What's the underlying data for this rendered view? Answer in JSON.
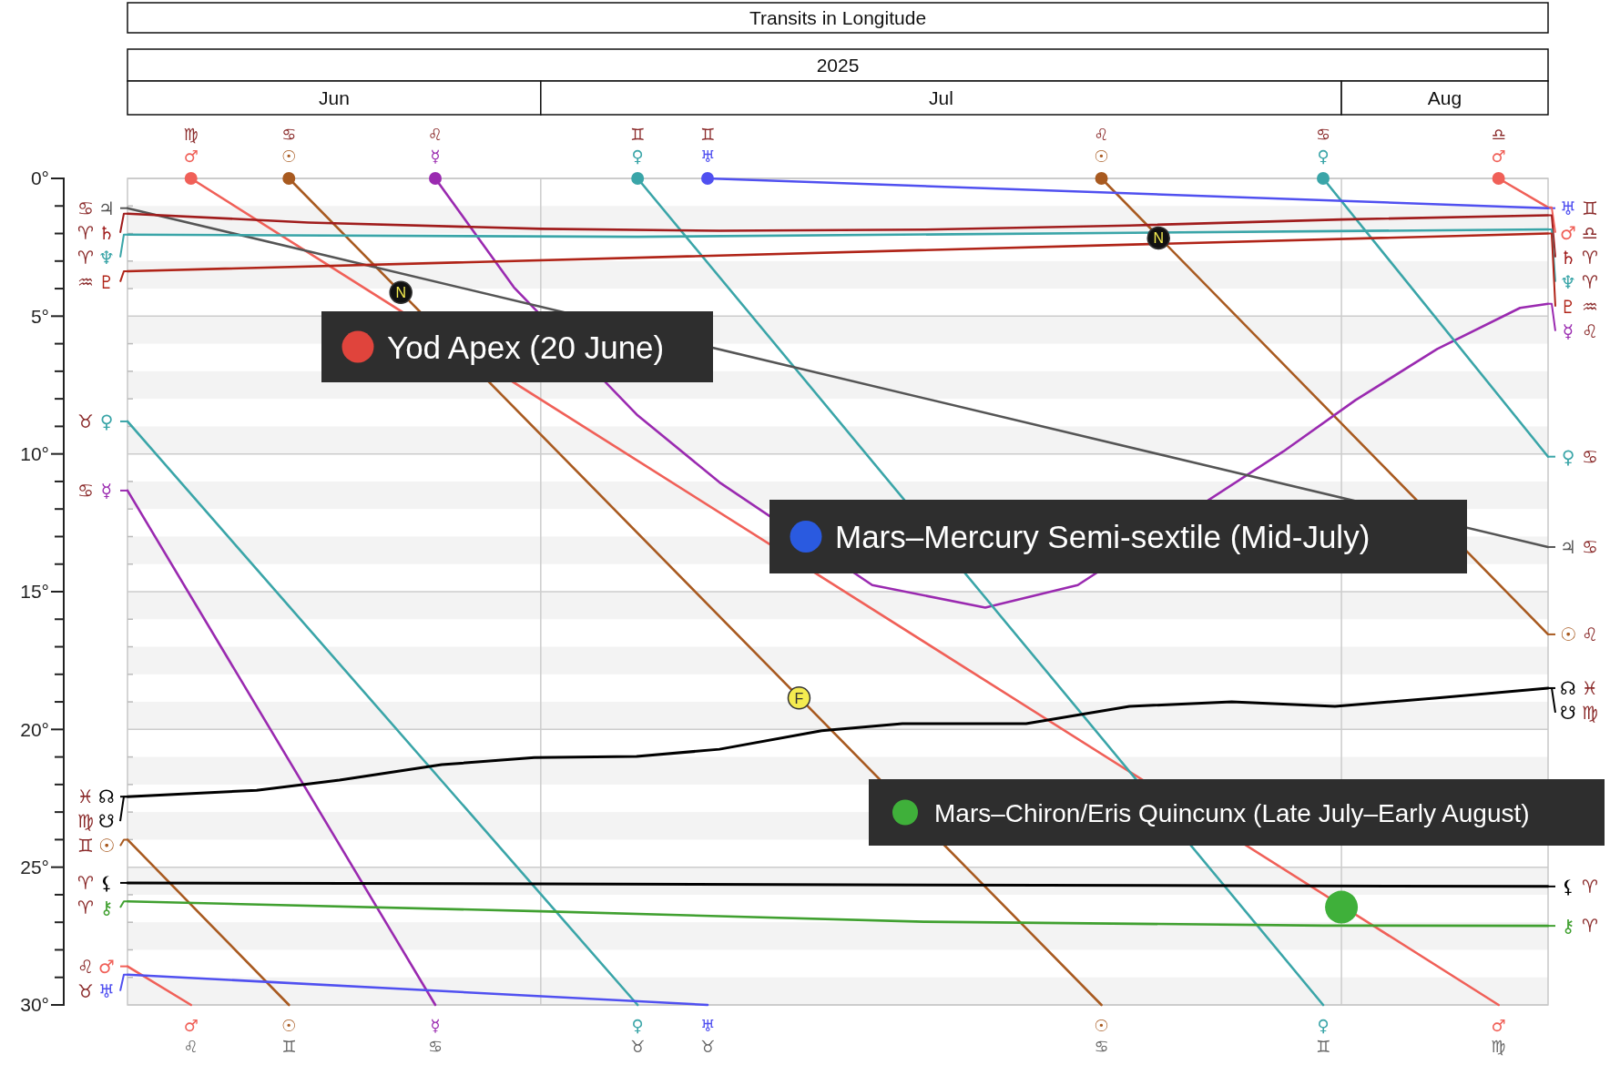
{
  "chart_data": {
    "type": "line",
    "title": "Transits in Longitude",
    "subtitle": "2025",
    "grid": "y",
    "xlim": [
      "2025-06-15",
      "2025-08-09"
    ],
    "xticks": [
      {
        "value": "2025-06-23",
        "label": "Jun"
      },
      {
        "value": "2025-07-16T12:00",
        "label": "Jul"
      },
      {
        "value": "2025-08-05",
        "label": "Aug"
      }
    ],
    "ref_lines": [
      {
        "axis": "x",
        "value": "2025-07-01",
        "label": null,
        "color": "#cccccc"
      },
      {
        "axis": "x",
        "value": "2025-08-01",
        "label": null,
        "color": "#cccccc"
      }
    ],
    "ylim": [
      30,
      0
    ],
    "yticks": [
      {
        "value": 0,
        "label": "0°"
      },
      {
        "value": 1,
        "label": null
      },
      {
        "value": 2,
        "label": null
      },
      {
        "value": 3,
        "label": null
      },
      {
        "value": 4,
        "label": null
      },
      {
        "value": 5,
        "label": "5°"
      },
      {
        "value": 6,
        "label": null
      },
      {
        "value": 7,
        "label": null
      },
      {
        "value": 8,
        "label": null
      },
      {
        "value": 9,
        "label": null
      },
      {
        "value": 10,
        "label": "10°"
      },
      {
        "value": 11,
        "label": null
      },
      {
        "value": 12,
        "label": null
      },
      {
        "value": 13,
        "label": null
      },
      {
        "value": 14,
        "label": null
      },
      {
        "value": 15,
        "label": "15°"
      },
      {
        "value": 16,
        "label": null
      },
      {
        "value": 17,
        "label": null
      },
      {
        "value": 18,
        "label": null
      },
      {
        "value": 19,
        "label": null
      },
      {
        "value": 20,
        "label": "20°"
      },
      {
        "value": 21,
        "label": null
      },
      {
        "value": 22,
        "label": null
      },
      {
        "value": 23,
        "label": null
      },
      {
        "value": 24,
        "label": null
      },
      {
        "value": 25,
        "label": "25°"
      },
      {
        "value": 26,
        "label": null
      },
      {
        "value": 27,
        "label": null
      },
      {
        "value": 28,
        "label": null
      },
      {
        "value": 29,
        "label": null
      },
      {
        "value": 30,
        "label": "30°"
      }
    ],
    "series": [
      {
        "color": "#f06058",
        "x": [
          "2025-06-15",
          "2025-06-17T11:00"
        ],
        "values": [
          28.6,
          30
        ]
      },
      {
        "color": "#f06058",
        "x": [
          "2025-06-17T11:00",
          "2025-08-07T02:00"
        ],
        "values": [
          0,
          30
        ]
      },
      {
        "color": "#f06058",
        "x": [
          "2025-08-07T02:00",
          "2025-08-09"
        ],
        "values": [
          0,
          1.05
        ]
      },
      {
        "color": "#a85a20",
        "x": [
          "2025-06-15",
          "2025-06-21T06:00"
        ],
        "values": [
          24.0,
          30
        ]
      },
      {
        "color": "#a85a20",
        "x": [
          "2025-06-21T06:00",
          "2025-07-22T17:00"
        ],
        "values": [
          0,
          30
        ]
      },
      {
        "color": "#a85a20",
        "x": [
          "2025-07-22T17:00",
          "2025-08-09"
        ],
        "values": [
          0,
          16.55
        ]
      },
      {
        "color": "#9a2ab0",
        "x": [
          "2025-06-15",
          "2025-06-26T22:00"
        ],
        "values": [
          11.33,
          30
        ]
      },
      {
        "color": "#9a2ab0",
        "x": [
          "2025-06-26T22:00",
          "2025-06-29T23:00",
          "2025-07-04T18:00",
          "2025-07-07T22:00",
          "2025-07-13T20:00",
          "2025-07-18T05:00",
          "2025-07-21T19:00",
          "2025-07-29T18:00",
          "2025-08-01T13:00",
          "2025-08-04T17:00",
          "2025-08-07T22:00",
          "2025-08-09"
        ],
        "values": [
          0,
          3.95,
          8.6,
          11.03,
          14.76,
          15.58,
          14.76,
          9.91,
          8.05,
          6.19,
          4.7,
          4.55
        ]
      },
      {
        "color": "#3aa5a8",
        "x": [
          "2025-06-15",
          "2025-07-04T18:00"
        ],
        "values": [
          8.82,
          30
        ]
      },
      {
        "color": "#3aa5a8",
        "x": [
          "2025-07-04T18:00",
          "2025-07-31T07:00"
        ],
        "values": [
          0,
          30
        ]
      },
      {
        "color": "#3aa5a8",
        "x": [
          "2025-07-31T07:00",
          "2025-08-09"
        ],
        "values": [
          0,
          10.1
        ]
      },
      {
        "color": "#5050f0",
        "x": [
          "2025-06-15",
          "2025-07-07T11:00"
        ],
        "values": [
          28.9,
          30
        ]
      },
      {
        "color": "#5050f0",
        "x": [
          "2025-07-07T11:00",
          "2025-08-09"
        ],
        "values": [
          0,
          1.08
        ]
      },
      {
        "color": "#555555",
        "x": [
          "2025-06-15",
          "2025-08-09"
        ],
        "values": [
          1.08,
          13.38
        ]
      },
      {
        "color": "#a01c1c",
        "x": [
          "2025-06-15",
          "2025-06-22",
          "2025-07-01",
          "2025-07-07T22:00",
          "2025-07-15T20:00",
          "2025-07-23T19:00",
          "2025-08-01",
          "2025-08-09"
        ],
        "values": [
          1.28,
          1.6,
          1.83,
          1.9,
          1.86,
          1.71,
          1.49,
          1.34
        ]
      },
      {
        "color": "#3aa5a8",
        "x": [
          "2025-06-15",
          "2025-07-04T18:00",
          "2025-08-09"
        ],
        "values": [
          2.04,
          2.12,
          1.85
        ]
      },
      {
        "color": "#b02418",
        "x": [
          "2025-06-15",
          "2025-08-09"
        ],
        "values": [
          3.37,
          2.0
        ]
      },
      {
        "color": "#000000",
        "x": [
          "2025-06-15",
          "2025-06-20",
          "2025-06-23T05:00",
          "2025-06-27T04:00",
          "2025-06-30T18:00",
          "2025-07-04T17:00",
          "2025-07-07T22:00",
          "2025-07-11T21:00",
          "2025-07-15",
          "2025-07-19T19:00",
          "2025-07-23T19:00",
          "2025-07-27T18:00",
          "2025-07-31T18:00",
          "2025-08-04T17:00",
          "2025-08-09"
        ],
        "values": [
          22.44,
          22.21,
          21.84,
          21.28,
          21.02,
          20.98,
          20.72,
          20.05,
          19.79,
          19.79,
          19.16,
          19.0,
          19.16,
          18.86,
          18.5
        ]
      },
      {
        "color": "#000000",
        "x": [
          "2025-06-15",
          "2025-08-09"
        ],
        "values": [
          25.57,
          25.7
        ]
      },
      {
        "color": "#40a030",
        "x": [
          "2025-06-15",
          "2025-07-01",
          "2025-07-15T20:00",
          "2025-07-31T07:00",
          "2025-08-09"
        ],
        "values": [
          26.24,
          26.6,
          26.98,
          27.12,
          27.13
        ]
      },
      {
        "type": "scatter",
        "colors": [
          "#f06058",
          "#a85a20",
          "#9a2ab0",
          "#3aa5a8",
          "#5050f0",
          "#a85a20",
          "#3aa5a8",
          "#f06058"
        ],
        "x": [
          "2025-06-17T11:00",
          "2025-06-21T06:00",
          "2025-06-26T22:00",
          "2025-07-04T18:00",
          "2025-07-07T11:00",
          "2025-07-22T17:00",
          "2025-07-31T07:00",
          "2025-08-07T02:00"
        ],
        "values": [
          0,
          0,
          0,
          0,
          0,
          0,
          0,
          0
        ]
      },
      {
        "type": "bubble",
        "color": "#3fb03a",
        "x": [
          "2025-08-01"
        ],
        "values": [
          26.45
        ],
        "sizes": [
          1
        ]
      }
    ],
    "annotations": [
      "Yod Apex (20 June)",
      "Mars–Mercury Semi-sextile (Mid-July)",
      "Mars–Chiron/Eris Quincunx (Late July–Early August)",
      {
        "text": "N",
        "x": "2025-06-25T14:00",
        "y": 4.14
      },
      {
        "text": "N",
        "x": "2025-07-24T22:00",
        "y": 2.16
      },
      {
        "text": "F",
        "x": "2025-07-11",
        "y": 18.86
      },
      {
        "text": "♋ ♃",
        "x": "2025-06-15",
        "y": 1.08
      },
      {
        "text": "♈ ♄",
        "x": "2025-06-15",
        "y": 1.28
      },
      {
        "text": "♈ ♆",
        "x": "2025-06-15",
        "y": 2.04
      },
      {
        "text": "♒ ♇",
        "x": "2025-06-15",
        "y": 3.37
      },
      {
        "text": "♉ ♀",
        "x": "2025-06-15",
        "y": 8.82
      },
      {
        "text": "♋ ☿",
        "x": "2025-06-15",
        "y": 11.33
      },
      {
        "text": "♓ ☊",
        "x": "2025-06-15",
        "y": 22.44
      },
      {
        "text": "♍ ☋",
        "x": "2025-06-15",
        "y": 22.44
      },
      {
        "text": "♊ ☉",
        "x": "2025-06-15",
        "y": 24.0
      },
      {
        "text": "♈ ⚸",
        "x": "2025-06-15",
        "y": 25.57
      },
      {
        "text": "♈ ⚷",
        "x": "2025-06-15",
        "y": 26.24
      },
      {
        "text": "♌ ♂",
        "x": "2025-06-15",
        "y": 28.6
      },
      {
        "text": "♉ ♅",
        "x": "2025-06-15",
        "y": 28.9
      },
      {
        "text": "♅ ♊",
        "x": "2025-08-09",
        "y": 1.08
      },
      {
        "text": "♂ ♎",
        "x": "2025-08-09",
        "y": 1.05
      },
      {
        "text": "♄ ♈",
        "x": "2025-08-09",
        "y": 1.34
      },
      {
        "text": "♆ ♈",
        "x": "2025-08-09",
        "y": 1.85
      },
      {
        "text": "♇ ♒",
        "x": "2025-08-09",
        "y": 2.0
      },
      {
        "text": "☿ ♌",
        "x": "2025-08-09",
        "y": 4.55
      },
      {
        "text": "♀ ♋",
        "x": "2025-08-09",
        "y": 10.1
      },
      {
        "text": "♃ ♋",
        "x": "2025-08-09",
        "y": 13.38
      },
      {
        "text": "☉ ♌",
        "x": "2025-08-09",
        "y": 16.55
      },
      {
        "text": "☊ ♓",
        "x": "2025-08-09",
        "y": 18.5
      },
      {
        "text": "☋ ♍",
        "x": "2025-08-09",
        "y": 18.5
      },
      {
        "text": "⚸ ♈",
        "x": "2025-08-09",
        "y": 25.7
      },
      {
        "text": "⚷ ♈",
        "x": "2025-08-09",
        "y": 27.13
      },
      {
        "text": "♍ ♂",
        "x": "2025-06-17T11:00",
        "y": 0
      },
      {
        "text": "♋ ☉",
        "x": "2025-06-21T06:00",
        "y": 0
      },
      {
        "text": "♌ ☿",
        "x": "2025-06-26T22:00",
        "y": 0
      },
      {
        "text": "♊ ♀",
        "x": "2025-07-04T18:00",
        "y": 0
      },
      {
        "text": "♊ ♅",
        "x": "2025-07-07T11:00",
        "y": 0
      },
      {
        "text": "♌ ☉",
        "x": "2025-07-22T17:00",
        "y": 0
      },
      {
        "text": "♋ ♀",
        "x": "2025-07-31T07:00",
        "y": 0
      },
      {
        "text": "♎ ♂",
        "x": "2025-08-07T02:00",
        "y": 0
      },
      {
        "text": "♂ ♌",
        "x": "2025-06-17T11:00",
        "y": 30
      },
      {
        "text": "☉ ♊",
        "x": "2025-06-21T06:00",
        "y": 30
      },
      {
        "text": "☿ ♋",
        "x": "2025-06-26T22:00",
        "y": 30
      },
      {
        "text": "♀ ♉",
        "x": "2025-07-04T18:00",
        "y": 30
      },
      {
        "text": "♅ ♉",
        "x": "2025-07-07T11:00",
        "y": 30
      },
      {
        "text": "☉ ♋",
        "x": "2025-07-22T17:00",
        "y": 30
      },
      {
        "text": "♀ ♊",
        "x": "2025-07-31T07:00",
        "y": 30
      },
      {
        "text": "♂ ♍",
        "x": "2025-08-07T02:00",
        "y": 30
      }
    ]
  }
}
